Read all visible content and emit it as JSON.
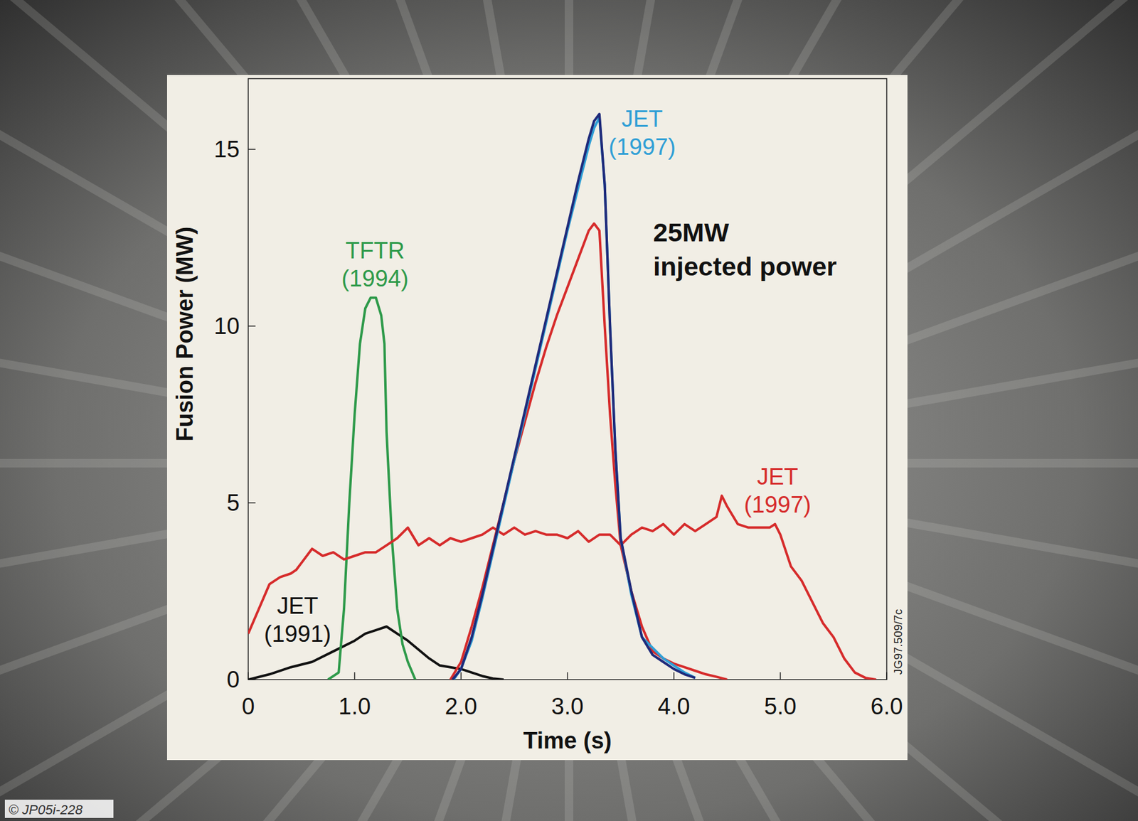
{
  "chart_data": {
    "type": "line",
    "x_label": "Time (s)",
    "y_label": "Fusion Power (MW)",
    "xlim": [
      0,
      6
    ],
    "ylim": [
      0,
      17
    ],
    "xticks": [
      0,
      {
        "value": 1,
        "label": "1.0"
      },
      {
        "value": 2,
        "label": "2.0"
      },
      {
        "value": 3,
        "label": "3.0"
      },
      {
        "value": 4,
        "label": "4.0"
      },
      {
        "value": 5,
        "label": "5.0"
      },
      {
        "value": 6,
        "label": "6.0"
      }
    ],
    "yticks": [
      0,
      5,
      10,
      15
    ],
    "grid": false,
    "annotations": [
      {
        "text": "25MW injected power"
      },
      {
        "text": "JG97.509/7c"
      },
      {
        "text": "© JP05i-228"
      }
    ],
    "series": [
      {
        "name": "JET (1991)",
        "color": "#111111",
        "x": [
          0,
          0.2,
          0.4,
          0.6,
          0.8,
          1.0,
          1.1,
          1.2,
          1.3,
          1.4,
          1.5,
          1.6,
          1.7,
          1.8,
          1.9,
          2.0,
          2.1,
          2.2,
          2.3,
          2.4
        ],
        "values": [
          0,
          0.15,
          0.35,
          0.5,
          0.8,
          1.1,
          1.3,
          1.4,
          1.5,
          1.3,
          1.1,
          0.85,
          0.6,
          0.4,
          0.35,
          0.3,
          0.2,
          0.1,
          0.03,
          0
        ]
      },
      {
        "name": "TFTR (1994)",
        "color": "#2e9a4a",
        "x": [
          0.75,
          0.85,
          0.9,
          0.95,
          1.0,
          1.05,
          1.1,
          1.15,
          1.2,
          1.25,
          1.28,
          1.3,
          1.35,
          1.4,
          1.45,
          1.5,
          1.57
        ],
        "values": [
          0,
          0.2,
          2,
          5,
          7.5,
          9.5,
          10.5,
          10.8,
          10.8,
          10.3,
          9.5,
          7,
          4,
          2,
          1,
          0.5,
          0
        ]
      },
      {
        "name": "JET (1997)",
        "color": "#d62b2b",
        "x": [
          0,
          0.1,
          0.2,
          0.3,
          0.4,
          0.45,
          0.5,
          0.6,
          0.7,
          0.8,
          0.9,
          1.0,
          1.1,
          1.2,
          1.3,
          1.4,
          1.5,
          1.6,
          1.7,
          1.8,
          1.9,
          2.0,
          2.1,
          2.2,
          2.3,
          2.4,
          2.5,
          2.6,
          2.7,
          2.8,
          2.9,
          3.0,
          3.1,
          3.2,
          3.3,
          3.4,
          3.5,
          3.6,
          3.7,
          3.8,
          3.9,
          4.0,
          4.1,
          4.2,
          4.3,
          4.4,
          4.45,
          4.5,
          4.6,
          4.7,
          4.8,
          4.9,
          4.95,
          5.0,
          5.1,
          5.2,
          5.3,
          5.4,
          5.5,
          5.6,
          5.7,
          5.8,
          5.9
        ],
        "values": [
          1.3,
          2.0,
          2.7,
          2.9,
          3.0,
          3.1,
          3.3,
          3.7,
          3.5,
          3.6,
          3.4,
          3.5,
          3.6,
          3.6,
          3.8,
          4.0,
          4.3,
          3.8,
          4.0,
          3.8,
          4.0,
          3.9,
          4.0,
          4.1,
          4.3,
          4.1,
          4.3,
          4.1,
          4.2,
          4.1,
          4.1,
          4.0,
          4.2,
          3.9,
          4.1,
          4.1,
          3.8,
          4.1,
          4.3,
          4.2,
          4.4,
          4.1,
          4.4,
          4.2,
          4.4,
          4.6,
          5.2,
          4.9,
          4.4,
          4.3,
          4.3,
          4.3,
          4.4,
          4.1,
          3.2,
          2.8,
          2.2,
          1.6,
          1.2,
          0.6,
          0.2,
          0.05,
          0
        ]
      },
      {
        "color": "#d62b2b",
        "x": [
          1.9,
          2.0,
          2.1,
          2.2,
          2.3,
          2.4,
          2.5,
          2.6,
          2.7,
          2.8,
          2.9,
          3.0,
          3.1,
          3.2,
          3.25,
          3.3,
          3.35,
          3.4,
          3.45,
          3.5,
          3.6,
          3.7,
          3.8,
          3.9,
          4.0,
          4.1,
          4.2,
          4.3,
          4.4,
          4.5
        ],
        "values": [
          0,
          0.5,
          1.5,
          2.6,
          3.8,
          5.0,
          6.2,
          7.3,
          8.4,
          9.4,
          10.3,
          11.1,
          11.9,
          12.7,
          12.9,
          12.7,
          10,
          7.5,
          5.5,
          3.8,
          2.5,
          1.5,
          0.8,
          0.6,
          0.45,
          0.35,
          0.25,
          0.15,
          0.08,
          0
        ]
      },
      {
        "name": "JET (1997)",
        "color": "#2f9fd6",
        "x": [
          1.93,
          2.0,
          2.1,
          2.2,
          2.3,
          2.4,
          2.5,
          2.6,
          2.7,
          2.8,
          2.9,
          3.0,
          3.1,
          3.2,
          3.25,
          3.3,
          3.35,
          3.4,
          3.45,
          3.5,
          3.6,
          3.7,
          3.8,
          3.9,
          4.0,
          4.1,
          4.2
        ],
        "values": [
          0,
          0.3,
          1.1,
          2.3,
          3.6,
          4.9,
          6.2,
          7.5,
          8.8,
          10.1,
          11.4,
          12.7,
          13.9,
          15.1,
          15.6,
          15.9,
          14,
          10,
          6.5,
          4.0,
          2.4,
          1.2,
          0.9,
          0.6,
          0.4,
          0.2,
          0.05
        ]
      },
      {
        "color": "#1f2a7a",
        "x": [
          1.92,
          2.0,
          2.1,
          2.2,
          2.3,
          2.4,
          2.5,
          2.6,
          2.7,
          2.8,
          2.9,
          3.0,
          3.1,
          3.2,
          3.25,
          3.3,
          3.35,
          3.4,
          3.45,
          3.5,
          3.6,
          3.7,
          3.8,
          3.9,
          4.0,
          4.1,
          4.2
        ],
        "values": [
          0,
          0.3,
          1.2,
          2.4,
          3.7,
          5.0,
          6.3,
          7.6,
          8.9,
          10.2,
          11.5,
          12.8,
          14.1,
          15.3,
          15.8,
          16.0,
          14,
          10,
          6.5,
          4.0,
          2.5,
          1.2,
          0.7,
          0.5,
          0.3,
          0.15,
          0.05
        ]
      }
    ]
  }
}
